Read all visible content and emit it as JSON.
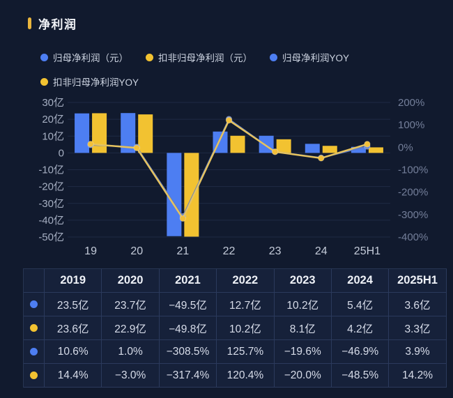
{
  "title": "净利润",
  "colors": {
    "background": "#111a2e",
    "accent_bar": "#e9b53d",
    "bar_blue": "#4d7ef2",
    "bar_yellow": "#f2c231",
    "grid_line": "#1f2a44",
    "left_axis_text": "#a6afc2",
    "right_axis_text": "#747f9a",
    "x_axis_text": "#c4cbd9",
    "table_border": "rgba(120,150,215,0.22)"
  },
  "legend": [
    {
      "label": "归母净利润（元）",
      "color": "#4d7ef2"
    },
    {
      "label": "扣非归母净利润（元）",
      "color": "#f2c231"
    },
    {
      "label": "归母净利润YOY",
      "color": "#4d7ef2"
    },
    {
      "label": "扣非归母净利润YOY",
      "color": "#f2c231"
    }
  ],
  "chart_data": {
    "type": "bar+line combo",
    "title": "净利润",
    "categories": [
      "19",
      "20",
      "21",
      "22",
      "23",
      "24",
      "25H1"
    ],
    "bar_series": [
      {
        "name": "归母净利润（元）",
        "unit": "亿",
        "color": "#4d7ef2",
        "values": [
          23.5,
          23.7,
          -49.5,
          12.7,
          10.2,
          5.4,
          3.6
        ]
      },
      {
        "name": "扣非归母净利润（元）",
        "unit": "亿",
        "color": "#f2c231",
        "values": [
          23.6,
          22.9,
          -49.8,
          10.2,
          8.1,
          4.2,
          3.3
        ]
      }
    ],
    "line_series": [
      {
        "name": "归母净利润YOY",
        "unit": "%",
        "color": "#5e7cc4",
        "marker_color": "#6d87c6",
        "values": [
          10.6,
          1.0,
          -308.5,
          125.7,
          -19.6,
          -46.9,
          3.9
        ]
      },
      {
        "name": "扣非归母净利润YOY",
        "unit": "%",
        "color": "#e6c35f",
        "marker_color": "#f2bf39",
        "values": [
          14.4,
          -3.0,
          -317.4,
          120.4,
          -20.0,
          -48.5,
          14.2
        ]
      }
    ],
    "left_axis": {
      "min": -50,
      "max": 30,
      "ticks": [
        "30亿",
        "20亿",
        "10亿",
        "0",
        "-10亿",
        "-20亿",
        "-30亿",
        "-40亿",
        "-50亿"
      ]
    },
    "right_axis": {
      "min": -400,
      "max": 200,
      "ticks": [
        "200%",
        "100%",
        "0%",
        "-100%",
        "-200%",
        "-300%",
        "-400%"
      ]
    },
    "grid": true,
    "legend_position": "top"
  },
  "table": {
    "headers": [
      "",
      "2019",
      "2020",
      "2021",
      "2022",
      "2023",
      "2024",
      "2025H1"
    ],
    "rows": [
      {
        "dot_color": "#4d7ef2",
        "cells": [
          "23.5亿",
          "23.7亿",
          "−49.5亿",
          "12.7亿",
          "10.2亿",
          "5.4亿",
          "3.6亿"
        ]
      },
      {
        "dot_color": "#f2c231",
        "cells": [
          "23.6亿",
          "22.9亿",
          "−49.8亿",
          "10.2亿",
          "8.1亿",
          "4.2亿",
          "3.3亿"
        ]
      },
      {
        "dot_color": "#4d7ef2",
        "cells": [
          "10.6%",
          "1.0%",
          "−308.5%",
          "125.7%",
          "−19.6%",
          "−46.9%",
          "3.9%"
        ]
      },
      {
        "dot_color": "#f2c231",
        "cells": [
          "14.4%",
          "−3.0%",
          "−317.4%",
          "120.4%",
          "−20.0%",
          "−48.5%",
          "14.2%"
        ]
      }
    ]
  }
}
